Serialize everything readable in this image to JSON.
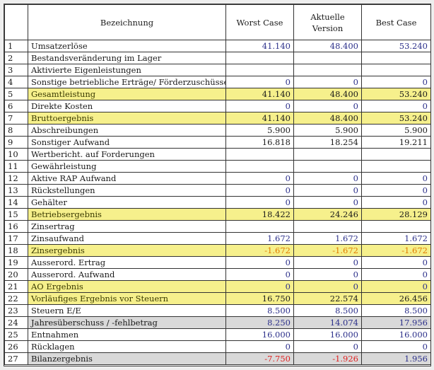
{
  "header": {
    "num": "",
    "label": "Bezeichnung",
    "worst": "Worst Case",
    "current_line1": "Aktuelle",
    "current_line2": "Version",
    "best": "Best Case"
  },
  "colors": {
    "yellow": "#f6f08c",
    "grey": "#d9d9d9",
    "blue": "#2b2f8a",
    "orange": "#e07b00",
    "red": "#e02020"
  },
  "rows": [
    {
      "num": "1",
      "label": "Umsatzerlöse",
      "worst": "41.140",
      "current": "48.400",
      "best": "53.240",
      "style": "",
      "colors": [
        "blue",
        "blue",
        "blue"
      ]
    },
    {
      "num": "2",
      "label": "Bestandsveränderung im Lager",
      "worst": "",
      "current": "",
      "best": "",
      "style": "",
      "colors": [
        "black",
        "black",
        "black"
      ]
    },
    {
      "num": "3",
      "label": "Aktivierte Eigenleistungen",
      "worst": "",
      "current": "",
      "best": "",
      "style": "",
      "colors": [
        "black",
        "black",
        "black"
      ]
    },
    {
      "num": "4",
      "label": "Sonstige betriebliche Erträge/ Förderzuschüsse",
      "worst": "0",
      "current": "0",
      "best": "0",
      "style": "",
      "colors": [
        "blue",
        "blue",
        "blue"
      ]
    },
    {
      "num": "5",
      "label": "Gesamtleistung",
      "worst": "41.140",
      "current": "48.400",
      "best": "53.240",
      "style": "yellow",
      "colors": [
        "black",
        "black",
        "black"
      ]
    },
    {
      "num": "6",
      "label": "Direkte Kosten",
      "worst": "0",
      "current": "0",
      "best": "0",
      "style": "",
      "colors": [
        "blue",
        "blue",
        "blue"
      ]
    },
    {
      "num": "7",
      "label": "Bruttoergebnis",
      "worst": "41.140",
      "current": "48.400",
      "best": "53.240",
      "style": "yellow",
      "colors": [
        "black",
        "black",
        "black"
      ]
    },
    {
      "num": "8",
      "label": "Abschreibungen",
      "worst": "5.900",
      "current": "5.900",
      "best": "5.900",
      "style": "",
      "colors": [
        "black",
        "black",
        "black"
      ]
    },
    {
      "num": "9",
      "label": "Sonstiger Aufwand",
      "worst": "16.818",
      "current": "18.254",
      "best": "19.211",
      "style": "",
      "colors": [
        "black",
        "black",
        "black"
      ]
    },
    {
      "num": "10",
      "label": "Wertbericht. auf Forderungen",
      "worst": "",
      "current": "",
      "best": "",
      "style": "",
      "colors": [
        "black",
        "black",
        "black"
      ]
    },
    {
      "num": "11",
      "label": "Gewährleistung",
      "worst": "",
      "current": "",
      "best": "",
      "style": "",
      "colors": [
        "black",
        "black",
        "black"
      ]
    },
    {
      "num": "12",
      "label": "Aktive RAP Aufwand",
      "worst": "0",
      "current": "0",
      "best": "0",
      "style": "",
      "colors": [
        "blue",
        "blue",
        "blue"
      ]
    },
    {
      "num": "13",
      "label": "Rückstellungen",
      "worst": "0",
      "current": "0",
      "best": "0",
      "style": "",
      "colors": [
        "blue",
        "blue",
        "blue"
      ]
    },
    {
      "num": "14",
      "label": "Gehälter",
      "worst": "0",
      "current": "0",
      "best": "0",
      "style": "",
      "colors": [
        "blue",
        "blue",
        "blue"
      ]
    },
    {
      "num": "15",
      "label": "Betriebsergebnis",
      "worst": "18.422",
      "current": "24.246",
      "best": "28.129",
      "style": "yellow",
      "colors": [
        "black",
        "black",
        "black"
      ]
    },
    {
      "num": "16",
      "label": "Zinsertrag",
      "worst": "",
      "current": "",
      "best": "",
      "style": "",
      "colors": [
        "black",
        "black",
        "black"
      ]
    },
    {
      "num": "17",
      "label": "Zinsaufwand",
      "worst": "1.672",
      "current": "1.672",
      "best": "1.672",
      "style": "",
      "colors": [
        "blue",
        "blue",
        "blue"
      ]
    },
    {
      "num": "18",
      "label": "Zinsergebnis",
      "worst": "-1.672",
      "current": "-1.672",
      "best": "-1.672",
      "style": "yellow",
      "colors": [
        "orange",
        "orange",
        "orange"
      ]
    },
    {
      "num": "19",
      "label": "Ausserord. Ertrag",
      "worst": "0",
      "current": "0",
      "best": "0",
      "style": "",
      "colors": [
        "blue",
        "blue",
        "blue"
      ]
    },
    {
      "num": "20",
      "label": "Ausserord. Aufwand",
      "worst": "0",
      "current": "0",
      "best": "0",
      "style": "",
      "colors": [
        "blue",
        "blue",
        "blue"
      ]
    },
    {
      "num": "21",
      "label": "AO Ergebnis",
      "worst": "0",
      "current": "0",
      "best": "0",
      "style": "yellow",
      "colors": [
        "blue",
        "blue",
        "blue"
      ]
    },
    {
      "num": "22",
      "label": "Vorläufiges Ergebnis vor Steuern",
      "worst": "16.750",
      "current": "22.574",
      "best": "26.456",
      "style": "yellow",
      "colors": [
        "black",
        "black",
        "black"
      ]
    },
    {
      "num": "23",
      "label": "Steuern E/E",
      "worst": "8.500",
      "current": "8.500",
      "best": "8.500",
      "style": "",
      "colors": [
        "blue",
        "blue",
        "blue"
      ]
    },
    {
      "num": "24",
      "label": "Jahresüberschuss / -fehlbetrag",
      "worst": "8.250",
      "current": "14.074",
      "best": "17.956",
      "style": "grey",
      "colors": [
        "blue",
        "blue",
        "blue"
      ]
    },
    {
      "num": "25",
      "label": "Entnahmen",
      "worst": "16.000",
      "current": "16.000",
      "best": "16.000",
      "style": "",
      "colors": [
        "blue",
        "blue",
        "blue"
      ]
    },
    {
      "num": "26",
      "label": "Rücklagen",
      "worst": "0",
      "current": "0",
      "best": "0",
      "style": "",
      "colors": [
        "blue",
        "blue",
        "blue"
      ]
    },
    {
      "num": "27",
      "label": "Bilanzergebnis",
      "worst": "-7.750",
      "current": "-1.926",
      "best": "1.956",
      "style": "grey",
      "colors": [
        "red",
        "red",
        "blue"
      ]
    }
  ]
}
